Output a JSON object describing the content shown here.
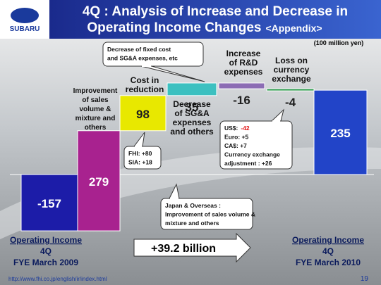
{
  "header": {
    "logo": "SUBARU",
    "title": [
      "4Q : Analysis of Increase and Decrease in",
      "Operating Income Changes"
    ],
    "title_suffix": "<Appendix>"
  },
  "chart_data": {
    "type": "waterfall",
    "unit_note": "(100 million yen)",
    "categories": [
      [
        "Operating Income",
        "4Q",
        "FYE March 2009"
      ],
      [
        "Improvement",
        "of sales",
        "volume &",
        "mixture and",
        "others"
      ],
      [
        "Cost in",
        "reduction"
      ],
      [
        "Decrease",
        "of SG&A",
        "expenses",
        "and others"
      ],
      [
        "Increase",
        "of R&D",
        "expenses"
      ],
      [
        "Loss on",
        "currency",
        "exchange"
      ],
      [
        "Operating Income",
        "4Q",
        "FYE March 2010"
      ]
    ],
    "values": [
      -157,
      279,
      98,
      35,
      -16,
      -4,
      235
    ],
    "bar_kinds": [
      "total",
      "delta",
      "delta",
      "delta",
      "delta",
      "delta",
      "total"
    ],
    "colors": [
      "#1c1ca8",
      "#a8228f",
      "#e8e800",
      "#3cc0c0",
      "#8c6cb4",
      "#2e9a4e",
      "#2244c8"
    ],
    "value_label_colors": [
      "#ffffff",
      "#ffffff",
      "#202020",
      "#202020",
      "#202020",
      "#202020",
      "#ffffff"
    ],
    "change_label": "+39.2 billion",
    "annotations": [
      {
        "lines": [
          "Decrease  of fixed cost",
          "and SG&A expenses,  etc"
        ]
      },
      {
        "lines": [
          "FHI:  +80",
          "SIA:  +18"
        ]
      },
      {
        "lines": [
          [
            "US$:",
            "-42"
          ],
          "Euro:  +5",
          "CA$:  +7",
          "Currency  exchange",
          "adjustment  : +26"
        ]
      },
      {
        "lines": [
          "Japan & Overseas  :",
          "Improvement  of  sales  volume  &",
          "mixture  and  others"
        ]
      }
    ]
  },
  "footer": {
    "url": "http://www.fhi.co.jp/english/ir/index.html",
    "page": "19"
  }
}
